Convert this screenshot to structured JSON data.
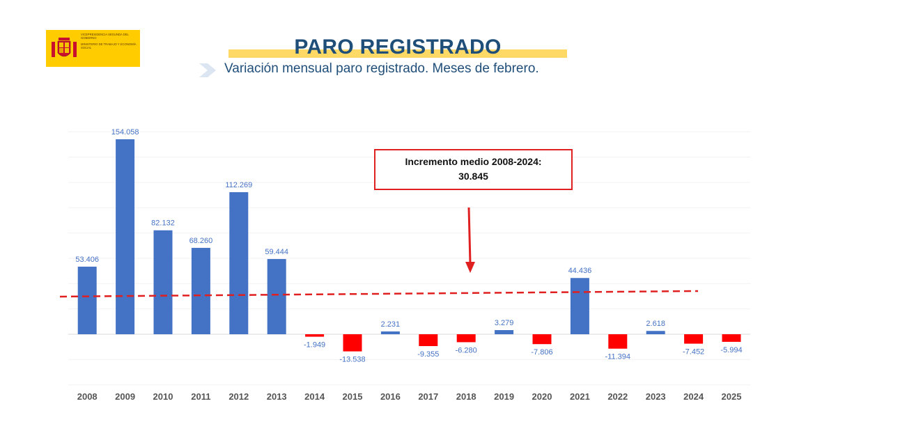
{
  "logo": {
    "line1": "Vicepresidencia Segunda del Gobierno",
    "line2": "Ministerio de Trabajo y Economía Social"
  },
  "header": {
    "title": "PARO REGISTRADO",
    "subtitle": "Variación mensual paro registrado. Meses de febrero."
  },
  "annotation": {
    "line1": "Incremento medio 2008-2024:",
    "line2": "30.845"
  },
  "colors": {
    "positive_bar": "#4472c4",
    "negative_bar": "#ff0000",
    "value_label_positive": "#4472c4",
    "value_label_negative": "#4472c4",
    "mean_line": "#e02020",
    "arrow": "#e02020",
    "title": "#1f4e79",
    "title_highlight": "#ffd966"
  },
  "chart_data": {
    "type": "bar",
    "title": "",
    "xlabel": "",
    "ylabel": "",
    "categories": [
      "2008",
      "2009",
      "2010",
      "2011",
      "2012",
      "2013",
      "2014",
      "2015",
      "2016",
      "2017",
      "2018",
      "2019",
      "2020",
      "2021",
      "2022",
      "2023",
      "2024",
      "2025"
    ],
    "values": [
      53406,
      154058,
      82132,
      68260,
      112269,
      59444,
      -1949,
      -13538,
      2231,
      -9355,
      -6280,
      3279,
      -7806,
      44436,
      -11394,
      2618,
      -7452,
      -5994
    ],
    "value_labels": [
      "53.406",
      "154.058",
      "82.132",
      "68.260",
      "112.269",
      "59.444",
      "-1.949",
      "-13.538",
      "2.231",
      "-9.355",
      "-6.280",
      "3.279",
      "-7.806",
      "44.436",
      "-11.394",
      "2.618",
      "-7.452",
      "-5.994"
    ],
    "mean_line": {
      "label": "Incremento medio 2008-2024",
      "value": 30845,
      "from": "2008",
      "to": "2024",
      "style": "dashed"
    },
    "ylim": [
      -40000,
      160000
    ],
    "grid": true,
    "legend": "none"
  }
}
